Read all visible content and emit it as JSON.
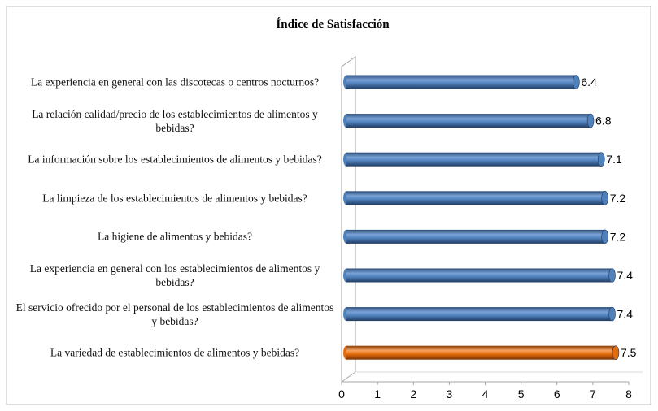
{
  "chart_data": {
    "type": "bar",
    "orientation": "horizontal",
    "title": "Índice de Satisfacción",
    "categories": [
      "La experiencia en general con las discotecas o centros nocturnos?",
      "La relación calidad/precio de los establecimientos de alimentos y bebidas?",
      "La información sobre los establecimientos de alimentos y bebidas?",
      "La limpieza de los establecimientos de alimentos y bebidas?",
      "La higiene de alimentos y bebidas?",
      "La experiencia en general con los establecimientos de alimentos y bebidas?",
      "El servicio ofrecido por el personal de los establecimientos de alimentos y bebidas?",
      "La variedad de establecimientos de alimentos y bebidas?"
    ],
    "values": [
      6.4,
      6.8,
      7.1,
      7.2,
      7.2,
      7.4,
      7.4,
      7.5
    ],
    "colors": [
      "#4f81bd",
      "#4f81bd",
      "#4f81bd",
      "#4f81bd",
      "#4f81bd",
      "#4f81bd",
      "#4f81bd",
      "#e46c0a"
    ],
    "xlim": [
      0,
      8
    ],
    "xticks": [
      0,
      1,
      2,
      3,
      4,
      5,
      6,
      7,
      8
    ]
  }
}
